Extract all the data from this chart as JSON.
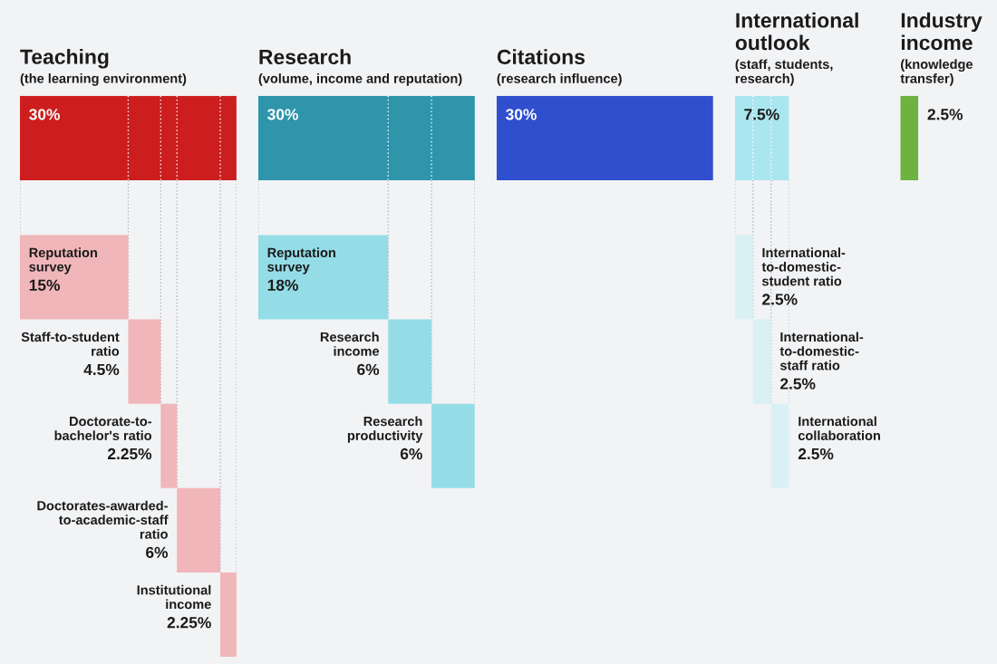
{
  "chart_data": [
    {
      "type": "other",
      "title": "Teaching",
      "subtitle": "(the learning environment)",
      "categories": [
        null,
        "Reputation\nsurvey",
        "Staff-to-student\nratio",
        "Doctorate-to-\nbachelor's ratio",
        "Doctorates-awarded-\nto-academic-staff\nratio",
        "Institutional\nincome"
      ],
      "values": [
        30,
        15,
        4.5,
        2.25,
        6,
        2.25
      ],
      "colors": [
        "#cc1e1e",
        "#f0b6ba",
        "#f0b6ba",
        "#f0b6ba",
        "#f0b6ba",
        "#f0b6ba"
      ],
      "value_labels": [
        "30%",
        "15%",
        "4.5%",
        "2.25%",
        "6%",
        "2.25%"
      ]
    },
    {
      "type": "other",
      "title": "Research",
      "subtitle": "(volume, income and reputation)",
      "categories": [
        null,
        "Reputation\nsurvey",
        "Research\nincome",
        "Research\nproductivity"
      ],
      "values": [
        30,
        18,
        6,
        6
      ],
      "colors": [
        "#2e95ab",
        "#94dde6",
        "#94dde6",
        "#94dde6"
      ],
      "value_labels": [
        "30%",
        "18%",
        "6%",
        "6%"
      ]
    },
    {
      "type": "other",
      "title": "Citations",
      "subtitle": "(research influence)",
      "categories": [
        null
      ],
      "values": [
        30
      ],
      "colors": [
        "#2f4fcf"
      ],
      "value_labels": [
        "30%"
      ]
    },
    {
      "type": "other",
      "title": "International\noutlook",
      "subtitle": "(staff, students,\nresearch)",
      "categories": [
        null,
        "International-\nto-domestic-\nstudent ratio",
        "International-\nto-domestic-\nstaff ratio",
        "International\ncollaboration"
      ],
      "values": [
        7.5,
        2.5,
        2.5,
        2.5
      ],
      "colors": [
        "#a9e6ef",
        "#d9f1f5",
        "#d9f1f5",
        "#d9f1f5"
      ],
      "value_labels": [
        "7.5%",
        "2.5%",
        "2.5%",
        "2.5%"
      ]
    },
    {
      "type": "other",
      "title": "Industry\nincome",
      "subtitle": "(knowledge\ntransfer)",
      "categories": [
        null
      ],
      "values": [
        2.5
      ],
      "colors": [
        "#6cb33f"
      ],
      "value_labels": [
        "2.5%"
      ]
    }
  ]
}
